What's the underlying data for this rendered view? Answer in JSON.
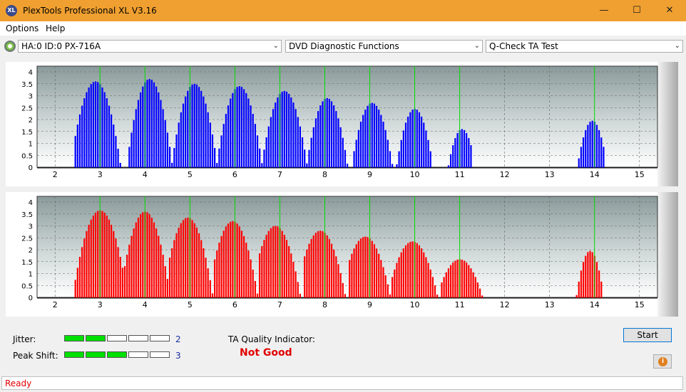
{
  "window": {
    "title": "PlexTools Professional XL V3.16",
    "icon_label": "XL"
  },
  "menu": {
    "items": [
      "Options",
      "Help"
    ]
  },
  "toolbar": {
    "drive": "HA:0 ID:0  PX-716A",
    "function": "DVD Diagnostic Functions",
    "test": "Q-Check TA Test"
  },
  "chart_data": [
    {
      "type": "bar",
      "series_color": "#0000ff",
      "ylim": [
        0,
        4
      ],
      "y_ticks": [
        "4",
        "3.5",
        "3",
        "2.5",
        "2",
        "1.5",
        "1",
        "0.5",
        "0"
      ],
      "xlim": [
        1.6,
        15.4
      ],
      "x_ticks": [
        "2",
        "3",
        "4",
        "5",
        "6",
        "7",
        "8",
        "9",
        "10",
        "11",
        "12",
        "13",
        "14",
        "15"
      ],
      "marker_lines": [
        3,
        4,
        5,
        6,
        7,
        8,
        9,
        10,
        11,
        14
      ],
      "peaks": [
        {
          "center": 2.9,
          "height": 3.6,
          "span": [
            2.4,
            3.5
          ]
        },
        {
          "center": 4.1,
          "height": 3.7,
          "span": [
            3.6,
            4.6
          ]
        },
        {
          "center": 5.1,
          "height": 3.5,
          "span": [
            4.6,
            5.6
          ]
        },
        {
          "center": 6.1,
          "height": 3.4,
          "span": [
            5.6,
            6.6
          ]
        },
        {
          "center": 7.1,
          "height": 3.2,
          "span": [
            6.6,
            7.6
          ]
        },
        {
          "center": 8.05,
          "height": 2.9,
          "span": [
            7.6,
            8.5
          ]
        },
        {
          "center": 9.05,
          "height": 2.7,
          "span": [
            8.6,
            9.5
          ]
        },
        {
          "center": 10.0,
          "height": 2.45,
          "span": [
            9.6,
            10.4
          ]
        },
        {
          "center": 11.05,
          "height": 1.6,
          "span": [
            10.7,
            11.3
          ]
        },
        {
          "center": 13.95,
          "height": 1.95,
          "span": [
            13.6,
            14.25
          ]
        }
      ]
    },
    {
      "type": "bar",
      "series_color": "#ff0000",
      "ylim": [
        0,
        4
      ],
      "y_ticks": [
        "4",
        "3.5",
        "3",
        "2.5",
        "2",
        "1.5",
        "1",
        "0.5",
        "0"
      ],
      "xlim": [
        1.6,
        15.4
      ],
      "x_ticks": [
        "2",
        "3",
        "4",
        "5",
        "6",
        "7",
        "8",
        "9",
        "10",
        "11",
        "12",
        "13",
        "14",
        "15"
      ],
      "marker_lines": [
        3,
        4,
        5,
        6,
        7,
        8,
        9,
        10,
        11,
        14
      ],
      "peaks": [
        {
          "center": 3.0,
          "height": 3.65,
          "span": [
            2.4,
            3.6
          ]
        },
        {
          "center": 4.0,
          "height": 3.6,
          "span": [
            3.5,
            4.6
          ]
        },
        {
          "center": 4.95,
          "height": 3.35,
          "span": [
            4.5,
            5.6
          ]
        },
        {
          "center": 5.95,
          "height": 3.2,
          "span": [
            5.5,
            6.6
          ]
        },
        {
          "center": 6.9,
          "height": 3.0,
          "span": [
            6.5,
            7.6
          ]
        },
        {
          "center": 7.9,
          "height": 2.8,
          "span": [
            7.5,
            8.6
          ]
        },
        {
          "center": 8.9,
          "height": 2.55,
          "span": [
            8.5,
            9.6
          ]
        },
        {
          "center": 9.95,
          "height": 2.35,
          "span": [
            9.5,
            10.6
          ]
        },
        {
          "center": 11.0,
          "height": 1.6,
          "span": [
            10.6,
            11.6
          ]
        },
        {
          "center": 13.9,
          "height": 1.95,
          "span": [
            13.6,
            14.2
          ]
        }
      ]
    }
  ],
  "controls": {
    "jitter_label": "Jitter:",
    "jitter_value": "2",
    "jitter_level": 2,
    "peakshift_label": "Peak Shift:",
    "peakshift_value": "3",
    "peakshift_level": 3,
    "meter_segments": 5,
    "ta_label": "TA Quality Indicator:",
    "ta_result": "Not Good",
    "start_label": "Start"
  },
  "status": {
    "text": "Ready"
  }
}
